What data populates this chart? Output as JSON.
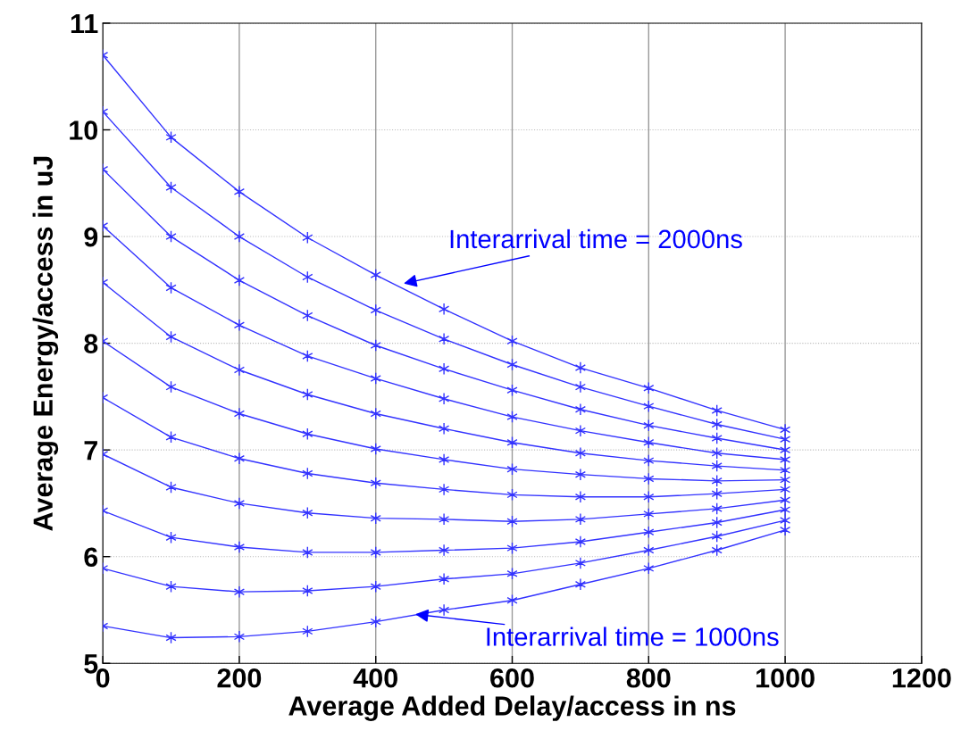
{
  "chart_data": {
    "type": "line",
    "xlabel": "Average Added Delay/access in ns",
    "ylabel": "Average Energy/access in uJ",
    "x": [
      0,
      100,
      200,
      300,
      400,
      500,
      600,
      700,
      800,
      900,
      1000
    ],
    "series": [
      {
        "color": "#3333ff",
        "values": [
          10.7,
          9.93,
          9.42,
          8.99,
          8.64,
          8.32,
          8.02,
          7.77,
          7.58,
          7.37,
          7.19
        ]
      },
      {
        "color": "#3333ff",
        "values": [
          10.17,
          9.46,
          9.0,
          8.62,
          8.31,
          8.04,
          7.8,
          7.59,
          7.41,
          7.24,
          7.1
        ]
      },
      {
        "color": "#3333ff",
        "values": [
          9.63,
          9.0,
          8.59,
          8.26,
          7.98,
          7.76,
          7.56,
          7.38,
          7.23,
          7.11,
          7.0
        ]
      },
      {
        "color": "#3333ff",
        "values": [
          9.1,
          8.52,
          8.17,
          7.88,
          7.67,
          7.48,
          7.31,
          7.18,
          7.07,
          6.97,
          6.91
        ]
      },
      {
        "color": "#3333ff",
        "values": [
          8.57,
          8.06,
          7.75,
          7.52,
          7.34,
          7.2,
          7.07,
          6.97,
          6.9,
          6.85,
          6.81
        ]
      },
      {
        "color": "#3333ff",
        "values": [
          8.02,
          7.59,
          7.34,
          7.15,
          7.01,
          6.91,
          6.82,
          6.77,
          6.73,
          6.71,
          6.72
        ]
      },
      {
        "color": "#3333ff",
        "values": [
          7.49,
          7.12,
          6.92,
          6.78,
          6.69,
          6.63,
          6.58,
          6.56,
          6.56,
          6.59,
          6.63
        ]
      },
      {
        "color": "#3333ff",
        "values": [
          6.96,
          6.65,
          6.5,
          6.41,
          6.36,
          6.35,
          6.33,
          6.35,
          6.4,
          6.45,
          6.53
        ]
      },
      {
        "color": "#3333ff",
        "values": [
          6.43,
          6.18,
          6.09,
          6.04,
          6.04,
          6.06,
          6.08,
          6.14,
          6.23,
          6.32,
          6.44
        ]
      },
      {
        "color": "#3333ff",
        "values": [
          5.89,
          5.72,
          5.67,
          5.68,
          5.72,
          5.79,
          5.84,
          5.94,
          6.06,
          6.19,
          6.34
        ]
      },
      {
        "color": "#3333ff",
        "values": [
          5.35,
          5.24,
          5.25,
          5.3,
          5.39,
          5.5,
          5.59,
          5.74,
          5.89,
          6.06,
          6.25
        ]
      }
    ],
    "xlim": [
      0,
      1200
    ],
    "xticks": [
      0,
      200,
      400,
      600,
      800,
      1000,
      1200
    ],
    "ylim": [
      5,
      11
    ],
    "yticks": [
      5,
      6,
      7,
      8,
      9,
      10,
      11
    ],
    "grid": true,
    "marker": "cross",
    "line_style": "solid",
    "legend": false,
    "annotations": [
      {
        "text": "Interarrival time = 2000ns",
        "x": 441,
        "y": 8.56
      },
      {
        "text": "Interarrival time = 1000ns",
        "x": 458,
        "y": 5.46
      }
    ]
  }
}
